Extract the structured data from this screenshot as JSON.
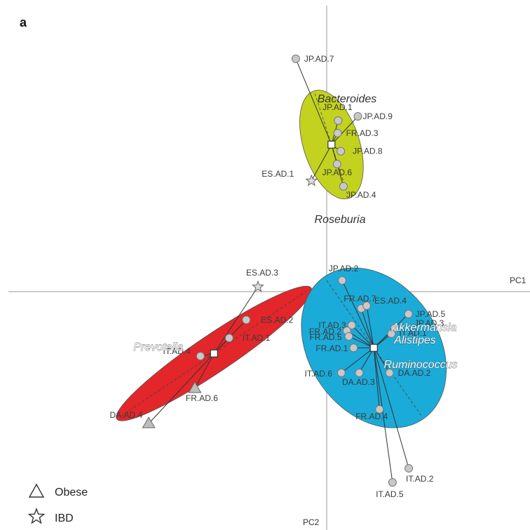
{
  "chart_data": {
    "type": "scatter",
    "panel_label": "a",
    "x_axis_label": "PC1",
    "y_axis_label": "PC2",
    "clusters": [
      {
        "color": "#c2d21f",
        "centroid": [
          0.18,
          5.52
        ],
        "ellipse": {
          "rx": 1.05,
          "ry": 2.12,
          "angle": -18
        },
        "points": [
          {
            "label": "JP.AD.7",
            "x": -1.16,
            "y": 8.74,
            "shape": "circle"
          },
          {
            "label": "JP.AD.1",
            "x": 0.43,
            "y": 6.42,
            "shape": "circle"
          },
          {
            "label": "JP.AD.9",
            "x": 1.17,
            "y": 6.58,
            "shape": "circle"
          },
          {
            "label": "FR.AD.3",
            "x": 0.41,
            "y": 5.95,
            "shape": "circle"
          },
          {
            "label": "JP.AD.8",
            "x": 0.53,
            "y": 5.27,
            "shape": "circle"
          },
          {
            "label": "JP.AD.6",
            "x": 0.39,
            "y": 4.79,
            "shape": "circle"
          },
          {
            "label": "JP.AD.4",
            "x": 0.63,
            "y": 3.95,
            "shape": "circle"
          },
          {
            "label": "ES.AD.1",
            "x": -0.57,
            "y": 4.16,
            "shape": "star"
          }
        ],
        "genus_labels": [
          "Bacteroides",
          "Roseburia"
        ]
      },
      {
        "color": "#e2262a",
        "centroid": [
          -4.23,
          -2.32
        ],
        "ellipse": {
          "rx": 4.4,
          "ry": 0.7,
          "angle": -34
        },
        "points": [
          {
            "label": "ES.AD.3",
            "x": -2.58,
            "y": 0.18,
            "shape": "star"
          },
          {
            "label": "ES.AD.2",
            "x": -3.02,
            "y": -1.06,
            "shape": "circle"
          },
          {
            "label": "IT.AD.1",
            "x": -3.66,
            "y": -1.74,
            "shape": "circle"
          },
          {
            "label": "IT.AD.4",
            "x": -4.74,
            "y": -2.42,
            "shape": "circle"
          },
          {
            "label": "FR.AD.6",
            "x": -4.95,
            "y": -3.63,
            "shape": "triangle"
          },
          {
            "label": "DA.AD.4",
            "x": -6.68,
            "y": -4.95,
            "shape": "triangle"
          }
        ],
        "genus_labels": [
          "Prevotella"
        ]
      },
      {
        "color": "#1aabd9",
        "centroid": [
          1.77,
          -2.11
        ],
        "ellipse": {
          "rx": 2.42,
          "ry": 3.25,
          "angle": -35
        },
        "points": [
          {
            "label": "JP.AD.2",
            "x": 0.58,
            "y": 0.42,
            "shape": "circle"
          },
          {
            "label": "FR.AD.7",
            "x": 1.3,
            "y": -0.63,
            "shape": "circle"
          },
          {
            "label": "ES.AD.4",
            "x": 1.5,
            "y": -0.53,
            "shape": "circle"
          },
          {
            "label": "IT.AD.3",
            "x": 0.94,
            "y": -1.26,
            "shape": "circle"
          },
          {
            "label": "FR.AD.2",
            "x": 0.76,
            "y": -1.47,
            "shape": "circle"
          },
          {
            "label": "FR.AD.5",
            "x": 0.83,
            "y": -1.68,
            "shape": "circle"
          },
          {
            "label": "FR.AD.1",
            "x": 1.01,
            "y": -2.11,
            "shape": "circle"
          },
          {
            "label": "IT.AD.6",
            "x": 0.55,
            "y": -3.05,
            "shape": "circle"
          },
          {
            "label": "DA.AD.3",
            "x": 1.22,
            "y": -3.05,
            "shape": "circle"
          },
          {
            "label": "JP.AD.3",
            "x": 2.55,
            "y": -1.37,
            "shape": "circle"
          },
          {
            "label": "IT.AD.1",
            "x": 2.43,
            "y": -1.58,
            "shape": "circle"
          },
          {
            "label": "DA.AD.2",
            "x": 2.36,
            "y": -3.05,
            "shape": "circle"
          },
          {
            "label": "JP.AD.5",
            "x": 3.07,
            "y": -0.84,
            "shape": "circle"
          },
          {
            "label": "FR.AD.4",
            "x": 1.98,
            "y": -4.42,
            "shape": "circle"
          },
          {
            "label": "IT.AD.2",
            "x": 3.08,
            "y": -6.63,
            "shape": "circle"
          },
          {
            "label": "IT.AD.5",
            "x": 2.47,
            "y": -7.16,
            "shape": "circle"
          }
        ],
        "genus_labels": [
          "Akkermansia",
          "Alistipes",
          "Ruminococcus"
        ]
      }
    ],
    "legend": [
      {
        "shape": "triangle",
        "label": "Obese"
      },
      {
        "shape": "star",
        "label": "IBD"
      }
    ]
  }
}
